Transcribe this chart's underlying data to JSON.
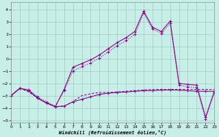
{
  "xlabel": "Windchill (Refroidissement éolien,°C)",
  "xlim": [
    0,
    23
  ],
  "ylim": [
    -5.2,
    4.6
  ],
  "yticks": [
    -5,
    -4,
    -3,
    -2,
    -1,
    0,
    1,
    2,
    3,
    4
  ],
  "xticks": [
    0,
    1,
    2,
    3,
    4,
    5,
    6,
    7,
    8,
    9,
    10,
    11,
    12,
    13,
    14,
    15,
    16,
    17,
    18,
    19,
    20,
    21,
    22,
    23
  ],
  "background_color": "#c8eee8",
  "grid_color": "#a0c8c0",
  "line_color": "#880088",
  "line1": [
    -3.0,
    -2.4,
    -2.6,
    -3.2,
    -3.6,
    -3.9,
    -2.5,
    -0.7,
    -0.4,
    -0.1,
    0.3,
    0.8,
    1.3,
    1.7,
    2.2,
    3.85,
    2.55,
    2.2,
    3.05,
    -2.0,
    -2.1,
    -2.15,
    -4.75,
    -2.65
  ],
  "line2": [
    -3.0,
    -2.4,
    -2.6,
    -3.2,
    -3.6,
    -3.9,
    -3.85,
    -3.5,
    -3.3,
    -3.1,
    -2.9,
    -2.8,
    -2.75,
    -2.7,
    -2.65,
    -2.6,
    -2.6,
    -2.55,
    -2.55,
    -2.55,
    -2.6,
    -2.65,
    -2.65,
    -2.65
  ],
  "line3": [
    -3.0,
    -2.4,
    -2.7,
    -3.2,
    -3.6,
    -3.9,
    -3.85,
    -3.5,
    -3.0,
    -2.85,
    -2.75,
    -2.75,
    -2.7,
    -2.65,
    -2.6,
    -2.55,
    -2.5,
    -2.5,
    -2.5,
    -2.5,
    -2.5,
    -2.5,
    -2.5,
    -2.5
  ],
  "line4": [
    -3.0,
    -2.4,
    -2.5,
    -3.1,
    -3.5,
    -3.85,
    -2.6,
    -1.0,
    -0.65,
    -0.35,
    0.05,
    0.55,
    1.05,
    1.45,
    1.95,
    3.7,
    2.4,
    2.05,
    2.85,
    -2.15,
    -2.3,
    -2.35,
    -4.9,
    -2.75
  ]
}
